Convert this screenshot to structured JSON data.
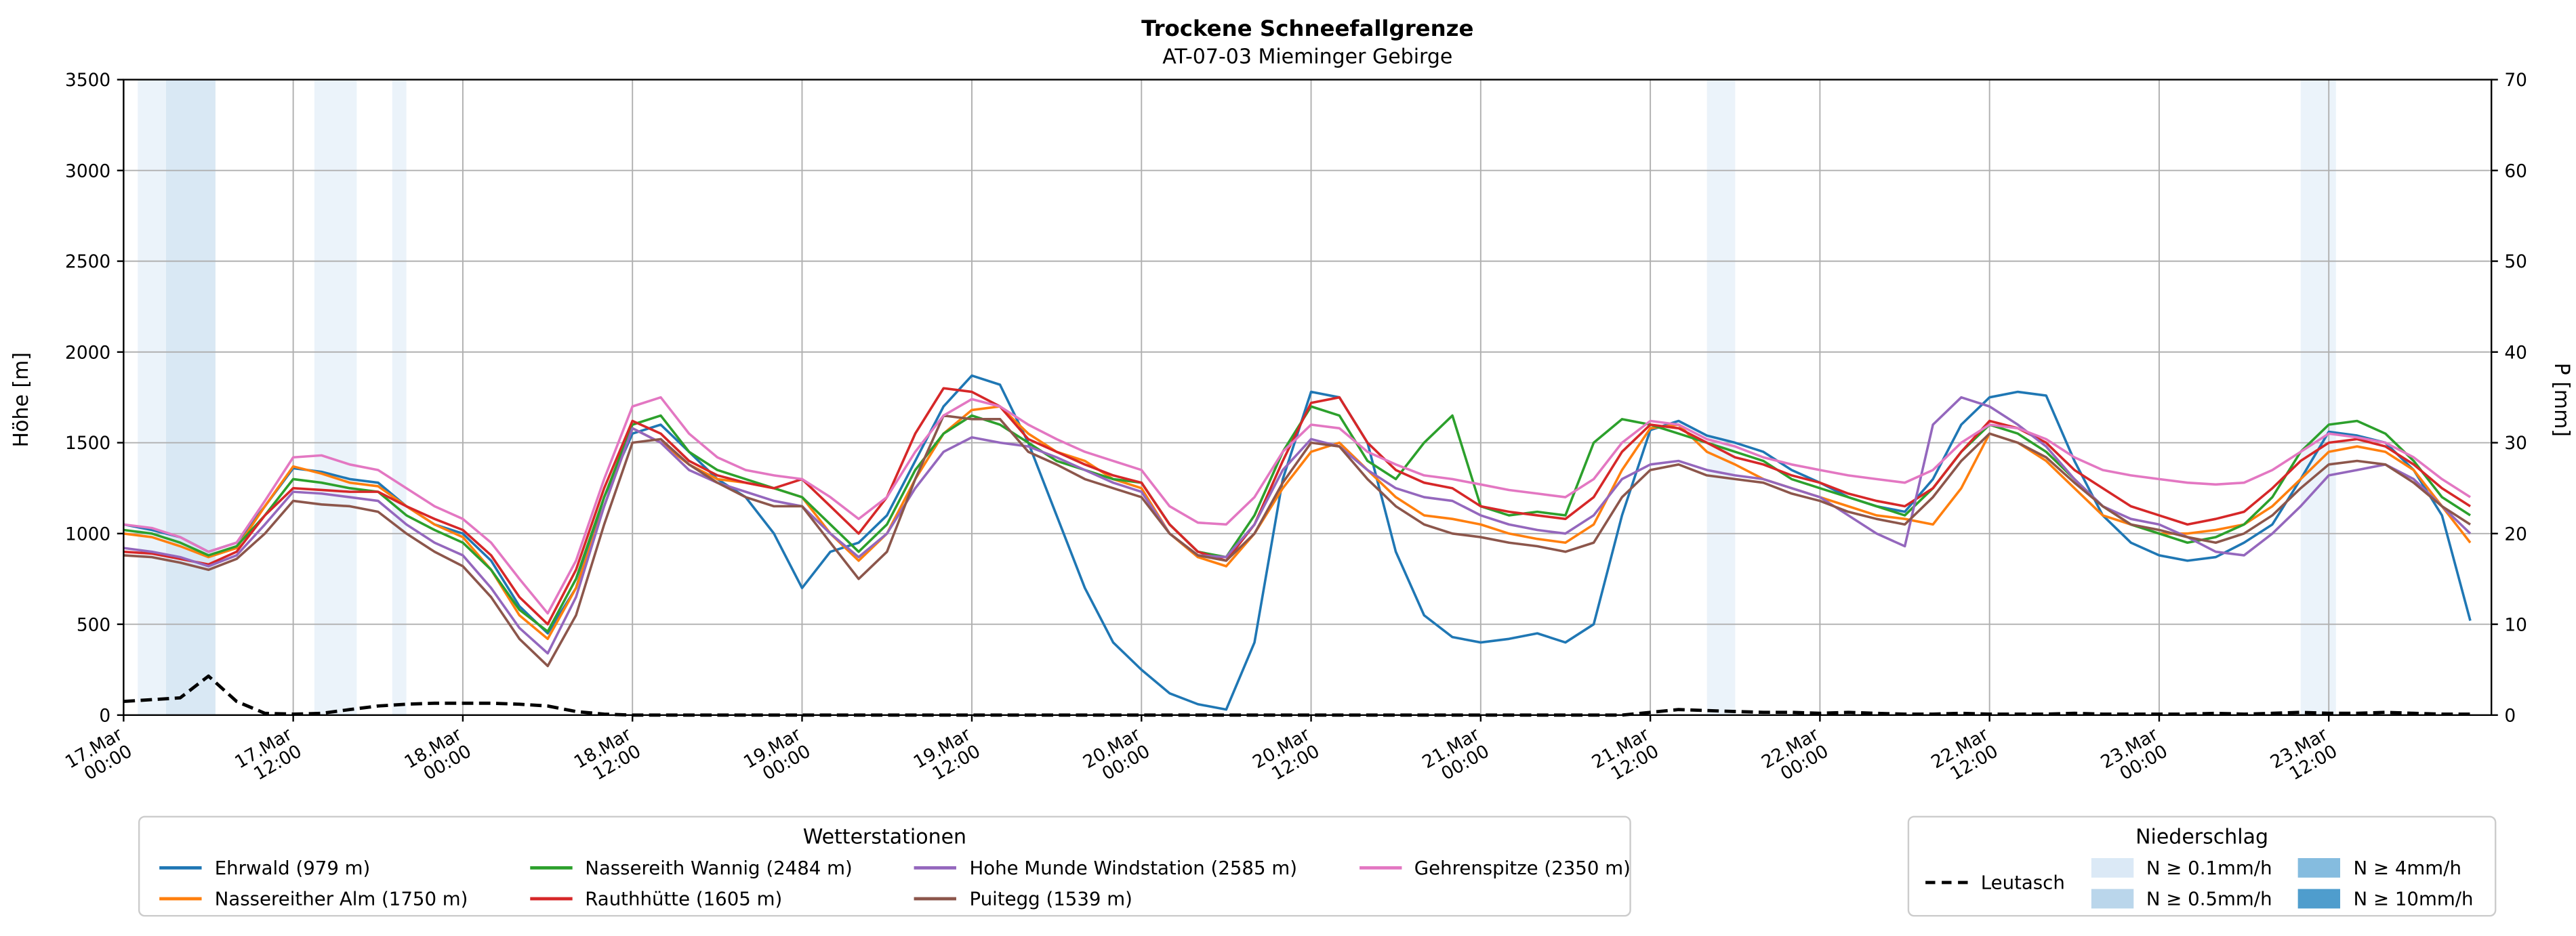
{
  "chart_data": {
    "type": "line",
    "title": "Trockene Schneefallgrenze",
    "subtitle": "AT-07-03 Mieminger Gebirge",
    "ylabel_left": "Höhe [m]",
    "ylabel_right": "P [mm]",
    "ylim_left": [
      0,
      3500
    ],
    "ylim_right": [
      0,
      70
    ],
    "y_ticks_left": [
      0,
      500,
      1000,
      1500,
      2000,
      2500,
      3000,
      3500
    ],
    "y_ticks_right": [
      0,
      10,
      20,
      30,
      40,
      50,
      60,
      70
    ],
    "x_unit": "hours since 17.Mar 00:00",
    "x_domain": [
      0,
      167.5
    ],
    "x": {
      "start": 0,
      "step": 2,
      "count": 84
    },
    "x_ticks": {
      "hours": [
        0,
        12,
        24,
        36,
        48,
        60,
        72,
        84,
        96,
        108,
        120,
        132,
        144,
        156
      ],
      "labels": [
        [
          "17.Mar",
          "00:00"
        ],
        [
          "17.Mar",
          "12:00"
        ],
        [
          "18.Mar",
          "00:00"
        ],
        [
          "18.Mar",
          "12:00"
        ],
        [
          "19.Mar",
          "00:00"
        ],
        [
          "19.Mar",
          "12:00"
        ],
        [
          "20.Mar",
          "00:00"
        ],
        [
          "20.Mar",
          "12:00"
        ],
        [
          "21.Mar",
          "00:00"
        ],
        [
          "21.Mar",
          "12:00"
        ],
        [
          "22.Mar",
          "00:00"
        ],
        [
          "22.Mar",
          "12:00"
        ],
        [
          "23.Mar",
          "00:00"
        ],
        [
          "23.Mar",
          "12:00"
        ]
      ]
    },
    "grid": true,
    "series": [
      {
        "id": "ehrwald",
        "name": "Ehrwald (979 m)",
        "color": "#1f77b4",
        "axis": "left",
        "values": [
          1050,
          1020,
          980,
          900,
          950,
          1150,
          1360,
          1340,
          1300,
          1280,
          1150,
          1050,
          1000,
          850,
          600,
          450,
          700,
          1200,
          1550,
          1600,
          1450,
          1300,
          1200,
          1000,
          700,
          900,
          950,
          1100,
          1400,
          1700,
          1870,
          1820,
          1500,
          1100,
          700,
          400,
          250,
          120,
          60,
          30,
          400,
          1300,
          1780,
          1750,
          1500,
          900,
          550,
          430,
          400,
          420,
          450,
          400,
          500,
          1100,
          1570,
          1620,
          1540,
          1500,
          1450,
          1350,
          1280,
          1200,
          1150,
          1120,
          1300,
          1600,
          1750,
          1780,
          1760,
          1400,
          1100,
          950,
          880,
          850,
          870,
          950,
          1050,
          1300,
          1560,
          1540,
          1500,
          1350,
          1100,
          520
        ]
      },
      {
        "id": "nassereither-alm",
        "name": "Nassereither Alm (1750 m)",
        "color": "#ff7f0e",
        "axis": "left",
        "values": [
          1000,
          980,
          930,
          870,
          920,
          1150,
          1370,
          1330,
          1280,
          1260,
          1150,
          1050,
          980,
          800,
          550,
          420,
          700,
          1150,
          1580,
          1500,
          1380,
          1300,
          1280,
          1250,
          1200,
          1000,
          850,
          1000,
          1300,
          1550,
          1680,
          1700,
          1550,
          1450,
          1400,
          1300,
          1250,
          1000,
          870,
          820,
          1000,
          1250,
          1450,
          1500,
          1350,
          1200,
          1100,
          1080,
          1050,
          1000,
          970,
          950,
          1050,
          1350,
          1580,
          1600,
          1450,
          1380,
          1300,
          1250,
          1200,
          1150,
          1100,
          1080,
          1050,
          1250,
          1550,
          1500,
          1400,
          1250,
          1100,
          1050,
          1000,
          1000,
          1020,
          1050,
          1150,
          1300,
          1450,
          1480,
          1450,
          1350,
          1150,
          950
        ]
      },
      {
        "id": "nassereith-wannig",
        "name": "Nassereith Wannig (2484 m)",
        "color": "#2ca02c",
        "axis": "left",
        "values": [
          1020,
          1000,
          950,
          880,
          930,
          1100,
          1300,
          1280,
          1250,
          1230,
          1100,
          1020,
          950,
          800,
          580,
          460,
          750,
          1200,
          1600,
          1650,
          1450,
          1350,
          1300,
          1250,
          1200,
          1050,
          900,
          1050,
          1350,
          1550,
          1650,
          1600,
          1500,
          1400,
          1350,
          1300,
          1280,
          1050,
          900,
          870,
          1100,
          1450,
          1700,
          1650,
          1400,
          1300,
          1500,
          1650,
          1150,
          1100,
          1120,
          1100,
          1500,
          1630,
          1600,
          1550,
          1500,
          1450,
          1400,
          1300,
          1250,
          1200,
          1150,
          1100,
          1250,
          1450,
          1600,
          1550,
          1450,
          1300,
          1150,
          1050,
          1000,
          950,
          980,
          1050,
          1200,
          1450,
          1600,
          1620,
          1550,
          1400,
          1200,
          1100
        ]
      },
      {
        "id": "rauthhuette",
        "name": "Rauthhütte (1605 m)",
        "color": "#d62728",
        "axis": "left",
        "values": [
          900,
          890,
          860,
          830,
          900,
          1100,
          1250,
          1240,
          1230,
          1230,
          1150,
          1080,
          1020,
          880,
          650,
          500,
          800,
          1250,
          1620,
          1550,
          1400,
          1320,
          1280,
          1250,
          1300,
          1150,
          1000,
          1200,
          1550,
          1800,
          1780,
          1700,
          1520,
          1450,
          1380,
          1320,
          1280,
          1050,
          900,
          850,
          1050,
          1400,
          1720,
          1750,
          1500,
          1350,
          1280,
          1250,
          1150,
          1120,
          1100,
          1080,
          1200,
          1450,
          1600,
          1580,
          1500,
          1420,
          1380,
          1320,
          1280,
          1220,
          1180,
          1150,
          1250,
          1450,
          1620,
          1580,
          1500,
          1350,
          1250,
          1150,
          1100,
          1050,
          1080,
          1120,
          1250,
          1400,
          1500,
          1520,
          1480,
          1380,
          1250,
          1150
        ]
      },
      {
        "id": "hohe-munde",
        "name": "Hohe Munde Windstation (2585 m)",
        "color": "#9467bd",
        "axis": "left",
        "values": [
          920,
          900,
          870,
          820,
          880,
          1050,
          1230,
          1220,
          1200,
          1180,
          1050,
          950,
          880,
          700,
          480,
          340,
          650,
          1150,
          1580,
          1500,
          1350,
          1280,
          1230,
          1180,
          1150,
          1000,
          870,
          1000,
          1250,
          1450,
          1530,
          1500,
          1480,
          1420,
          1350,
          1280,
          1230,
          1000,
          880,
          870,
          1050,
          1350,
          1520,
          1480,
          1350,
          1250,
          1200,
          1180,
          1100,
          1050,
          1020,
          1000,
          1100,
          1300,
          1380,
          1400,
          1350,
          1320,
          1300,
          1250,
          1200,
          1100,
          1000,
          930,
          1600,
          1750,
          1700,
          1600,
          1480,
          1300,
          1150,
          1080,
          1050,
          980,
          900,
          880,
          1000,
          1150,
          1320,
          1350,
          1380,
          1300,
          1150,
          1000
        ]
      },
      {
        "id": "puitegg",
        "name": "Puitegg (1539 m)",
        "color": "#8c564b",
        "axis": "left",
        "values": [
          880,
          870,
          840,
          800,
          860,
          1000,
          1180,
          1160,
          1150,
          1120,
          1000,
          900,
          820,
          650,
          420,
          270,
          550,
          1050,
          1500,
          1520,
          1380,
          1280,
          1200,
          1150,
          1150,
          950,
          750,
          900,
          1300,
          1650,
          1630,
          1630,
          1450,
          1380,
          1300,
          1250,
          1200,
          1000,
          880,
          850,
          1000,
          1280,
          1500,
          1480,
          1300,
          1150,
          1050,
          1000,
          980,
          950,
          930,
          900,
          950,
          1200,
          1350,
          1380,
          1320,
          1300,
          1280,
          1220,
          1180,
          1120,
          1080,
          1050,
          1200,
          1400,
          1550,
          1500,
          1420,
          1280,
          1150,
          1050,
          1020,
          980,
          950,
          1000,
          1100,
          1250,
          1380,
          1400,
          1380,
          1280,
          1150,
          1050
        ]
      },
      {
        "id": "gehrenspitze",
        "name": "Gehrenspitze (2350 m)",
        "color": "#e377c2",
        "axis": "left",
        "values": [
          1050,
          1030,
          980,
          900,
          950,
          1180,
          1420,
          1430,
          1380,
          1350,
          1250,
          1150,
          1080,
          950,
          750,
          560,
          850,
          1300,
          1700,
          1750,
          1550,
          1420,
          1350,
          1320,
          1300,
          1200,
          1080,
          1200,
          1450,
          1650,
          1740,
          1700,
          1600,
          1520,
          1450,
          1400,
          1350,
          1150,
          1060,
          1050,
          1200,
          1450,
          1600,
          1580,
          1450,
          1380,
          1320,
          1300,
          1270,
          1240,
          1220,
          1200,
          1300,
          1500,
          1620,
          1600,
          1520,
          1480,
          1420,
          1380,
          1350,
          1320,
          1300,
          1280,
          1350,
          1500,
          1600,
          1580,
          1520,
          1420,
          1350,
          1320,
          1300,
          1280,
          1270,
          1280,
          1350,
          1450,
          1550,
          1530,
          1500,
          1420,
          1300,
          1200
        ]
      },
      {
        "id": "leutasch",
        "name": "Leutasch",
        "color": "#000000",
        "axis": "right",
        "dashed": true,
        "width": 2,
        "values": [
          1.5,
          1.7,
          1.9,
          4.3,
          1.5,
          0.2,
          0.1,
          0.2,
          0.6,
          1.0,
          1.2,
          1.3,
          1.3,
          1.3,
          1.2,
          1.0,
          0.4,
          0.1,
          0,
          0,
          0,
          0,
          0,
          0,
          0,
          0,
          0,
          0,
          0,
          0,
          0,
          0,
          0,
          0,
          0,
          0,
          0,
          0,
          0,
          0,
          0,
          0,
          0,
          0,
          0,
          0,
          0,
          0,
          0,
          0,
          0,
          0,
          0,
          0,
          0.3,
          0.6,
          0.5,
          0.4,
          0.3,
          0.3,
          0.2,
          0.3,
          0.2,
          0.1,
          0.1,
          0.2,
          0.1,
          0.1,
          0.1,
          0.2,
          0.1,
          0.1,
          0.1,
          0.1,
          0.2,
          0.1,
          0.2,
          0.3,
          0.2,
          0.2,
          0.3,
          0.2,
          0.1,
          0.1
        ]
      }
    ],
    "precip_bands": [
      {
        "start": 1,
        "end": 3,
        "level": "0.1"
      },
      {
        "start": 3,
        "end": 6.5,
        "level": "0.5"
      },
      {
        "start": 13.5,
        "end": 16.5,
        "level": "0.1"
      },
      {
        "start": 19,
        "end": 20,
        "level": "0.1"
      },
      {
        "start": 112,
        "end": 114,
        "level": "0.1"
      },
      {
        "start": 154,
        "end": 156.5,
        "level": "0.1"
      }
    ],
    "band_colors": {
      "0.1": "#dbe9f6",
      "0.5": "#bad6eb",
      "4": "#85bcdf",
      "10": "#4f9dcd"
    },
    "legend_left": {
      "title": "Wetterstationen"
    },
    "legend_right": {
      "title": "Niederschlag",
      "line_item": "Leutasch",
      "patches": [
        {
          "level": "0.1",
          "label": "N ≥ 0.1mm/h",
          "color": "#dbe9f6"
        },
        {
          "level": "0.5",
          "label": "N ≥ 0.5mm/h",
          "color": "#bad6eb"
        },
        {
          "level": "4",
          "label": "N ≥ 4mm/h",
          "color": "#85bcdf"
        },
        {
          "level": "10",
          "label": "N ≥ 10mm/h",
          "color": "#4f9dcd"
        }
      ]
    }
  }
}
